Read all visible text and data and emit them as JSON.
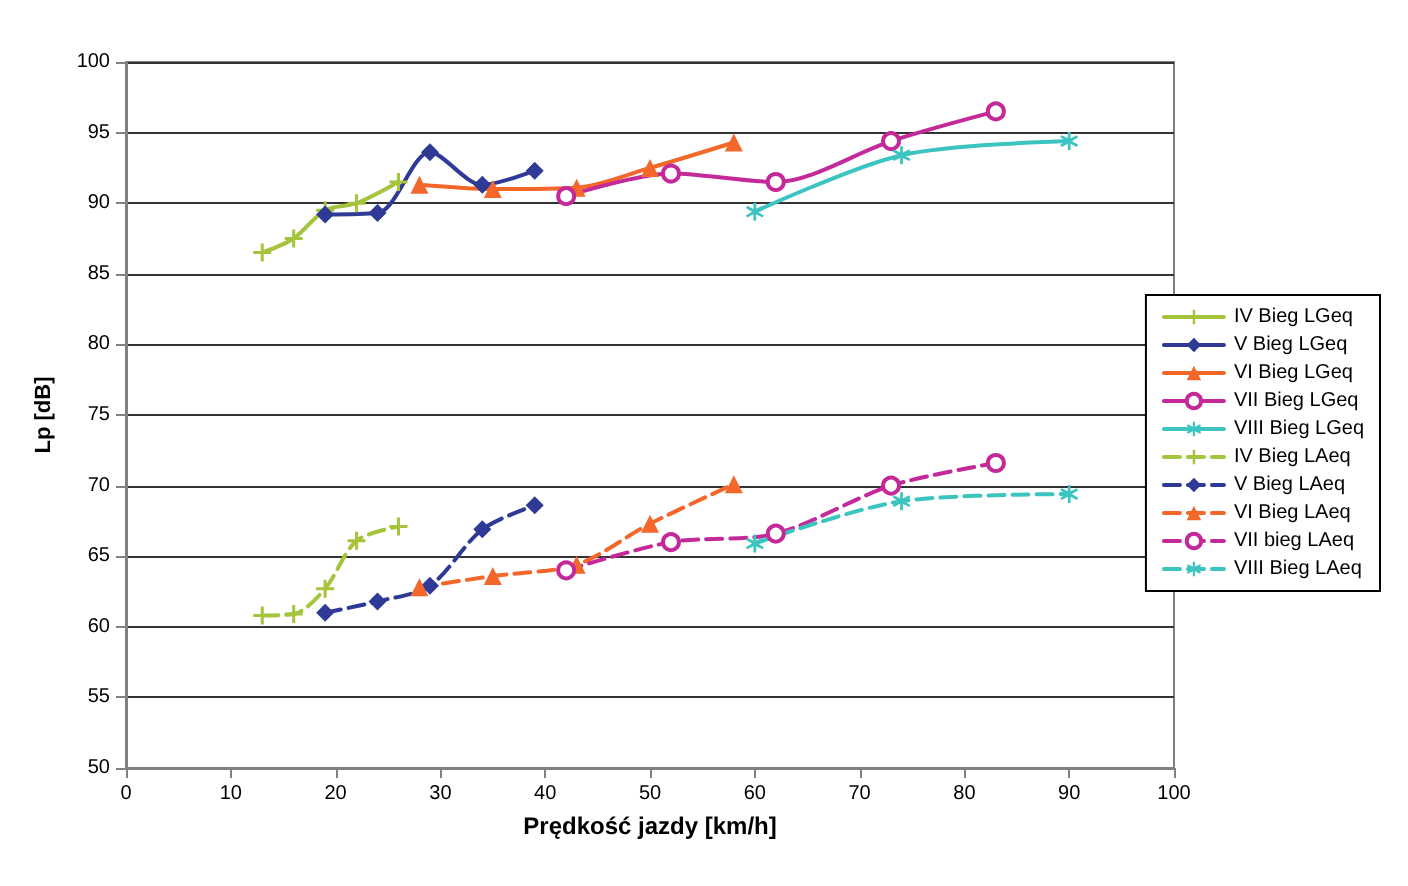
{
  "chart_data": {
    "type": "line",
    "xlabel": "Prędkość jazdy [km/h]",
    "ylabel": "Lp [dB]",
    "xlim": [
      0,
      100
    ],
    "xticks": [
      0,
      10,
      20,
      30,
      40,
      50,
      60,
      70,
      80,
      90,
      100
    ],
    "ylim": [
      50,
      100
    ],
    "yticks": [
      50,
      55,
      60,
      65,
      70,
      75,
      80,
      85,
      90,
      95,
      100
    ],
    "grid": "y",
    "legend": "right",
    "series": [
      {
        "name": "IV Bieg LGeq",
        "color": "#a4c43c",
        "marker": "cross",
        "line_style": "solid",
        "x": [
          13,
          16,
          19,
          22,
          26
        ],
        "values": [
          86.5,
          87.5,
          89.5,
          90,
          91.5
        ]
      },
      {
        "name": "V Bieg LGeq",
        "color": "#2e3a96",
        "marker": "diamond",
        "line_style": "solid",
        "x": [
          19,
          24,
          29,
          34,
          39
        ],
        "values": [
          89.2,
          89.3,
          93.6,
          91.3,
          92.3
        ]
      },
      {
        "name": "VI Bieg LGeq",
        "color": "#f4672a",
        "marker": "triangle",
        "line_style": "solid",
        "x": [
          28,
          35,
          43,
          50,
          58
        ],
        "values": [
          91.3,
          91,
          91.1,
          92.5,
          94.3
        ]
      },
      {
        "name": "VII Bieg LGeq",
        "color": "#c4299a",
        "marker": "circle",
        "line_style": "solid",
        "x": [
          42,
          52,
          62,
          73,
          83
        ],
        "values": [
          90.5,
          92.1,
          91.5,
          94.4,
          96.5
        ]
      },
      {
        "name": "VIII Bieg LGeq",
        "color": "#3cc4c0",
        "marker": "star",
        "line_style": "solid",
        "x": [
          60,
          74,
          90
        ],
        "values": [
          89.4,
          93.4,
          94.4
        ]
      },
      {
        "name": "IV Bieg LAeq",
        "color": "#a4c43c",
        "marker": "cross",
        "line_style": "dashed",
        "x": [
          13,
          16,
          19,
          22,
          26
        ],
        "values": [
          60.8,
          60.9,
          62.7,
          66.1,
          67.1
        ]
      },
      {
        "name": "V Bieg LAeq",
        "color": "#2e3a96",
        "marker": "diamond",
        "line_style": "dashed",
        "x": [
          19,
          24,
          29,
          34,
          39
        ],
        "values": [
          61,
          61.8,
          62.9,
          66.9,
          68.6
        ]
      },
      {
        "name": "VI Bieg LAeq",
        "color": "#f4672a",
        "marker": "triangle",
        "line_style": "dashed",
        "x": [
          28,
          35,
          43,
          50,
          58
        ],
        "values": [
          62.8,
          63.6,
          64.4,
          67.3,
          70.1
        ]
      },
      {
        "name": "VII bieg LAeq",
        "color": "#c4299a",
        "marker": "circle",
        "line_style": "dashed",
        "x": [
          42,
          52,
          62,
          73,
          83
        ],
        "values": [
          64,
          66,
          66.6,
          70,
          71.6
        ]
      },
      {
        "name": "VIII Bieg LAeq",
        "color": "#3cc4c0",
        "marker": "star",
        "line_style": "dashed",
        "x": [
          60,
          74,
          90
        ],
        "values": [
          65.9,
          68.9,
          69.4
        ]
      }
    ]
  }
}
